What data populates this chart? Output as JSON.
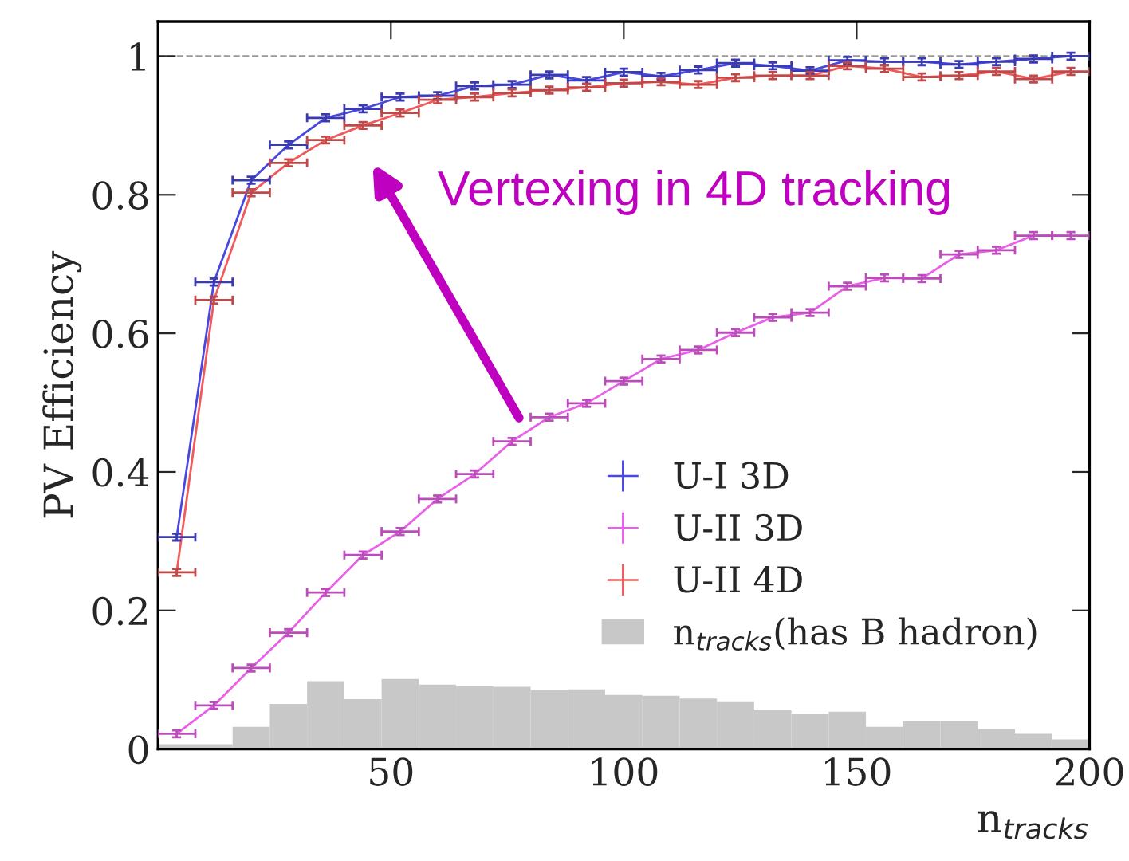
{
  "chart_data": {
    "type": "line",
    "xlabel": "n$_{tracks}$",
    "ylabel": "PV Efficiency",
    "xlim": [
      0,
      200
    ],
    "xticks": [
      50,
      100,
      150,
      200
    ],
    "ylim": [
      0,
      1.05
    ],
    "yticks": [
      0,
      0.2,
      0.4,
      0.6,
      0.8,
      1
    ],
    "x": [
      4,
      12,
      20,
      28,
      36,
      44,
      52,
      60,
      68,
      76,
      84,
      92,
      100,
      108,
      116,
      124,
      132,
      140,
      148,
      156,
      164,
      172,
      180,
      188,
      196
    ],
    "series": [
      {
        "name": "U-I 3D",
        "color": "#4848e0",
        "values": [
          0.306,
          0.674,
          0.821,
          0.872,
          0.911,
          0.924,
          0.941,
          0.943,
          0.957,
          0.959,
          0.973,
          0.965,
          0.977,
          0.971,
          0.98,
          0.99,
          0.986,
          0.979,
          0.994,
          0.992,
          0.992,
          0.988,
          0.992,
          0.996,
          1.0
        ],
        "xerrors": [
          4,
          4,
          4,
          4,
          4,
          4,
          4,
          4,
          4,
          4,
          4,
          4,
          4,
          4,
          4,
          4,
          4,
          4,
          4,
          4,
          4,
          4,
          4,
          4,
          4
        ],
        "errors": [
          0.005,
          0.005,
          0.005,
          0.005,
          0.005,
          0.005,
          0.005,
          0.005,
          0.005,
          0.005,
          0.005,
          0.005,
          0.005,
          0.005,
          0.005,
          0.005,
          0.005,
          0.005,
          0.005,
          0.005,
          0.005,
          0.005,
          0.005,
          0.005,
          0.005
        ]
      },
      {
        "name": "U-II 3D",
        "color": "#e860e8",
        "values": [
          0.022,
          0.063,
          0.117,
          0.168,
          0.226,
          0.28,
          0.314,
          0.361,
          0.397,
          0.444,
          0.479,
          0.499,
          0.531,
          0.563,
          0.576,
          0.601,
          0.623,
          0.63,
          0.668,
          0.68,
          0.679,
          0.714,
          0.72,
          0.741,
          0.741
        ],
        "xerrors": [
          4,
          4,
          4,
          4,
          4,
          4,
          4,
          4,
          4,
          4,
          4,
          4,
          4,
          4,
          4,
          4,
          4,
          4,
          4,
          4,
          4,
          4,
          4,
          4,
          4
        ],
        "errors": [
          0.005,
          0.005,
          0.005,
          0.005,
          0.005,
          0.005,
          0.005,
          0.005,
          0.005,
          0.005,
          0.005,
          0.005,
          0.005,
          0.005,
          0.005,
          0.005,
          0.005,
          0.005,
          0.005,
          0.005,
          0.005,
          0.005,
          0.005,
          0.005,
          0.005
        ]
      },
      {
        "name": "U-II 4D",
        "color": "#f05a5a",
        "values": [
          0.255,
          0.648,
          0.803,
          0.846,
          0.879,
          0.9,
          0.918,
          0.937,
          0.941,
          0.947,
          0.951,
          0.955,
          0.961,
          0.963,
          0.959,
          0.969,
          0.972,
          0.972,
          0.986,
          0.982,
          0.97,
          0.972,
          0.978,
          0.967,
          0.978
        ],
        "xerrors": [
          4,
          4,
          4,
          4,
          4,
          4,
          4,
          4,
          4,
          4,
          4,
          4,
          4,
          4,
          4,
          4,
          4,
          4,
          4,
          4,
          4,
          4,
          4,
          4,
          4
        ],
        "errors": [
          0.005,
          0.005,
          0.005,
          0.005,
          0.005,
          0.005,
          0.005,
          0.005,
          0.005,
          0.005,
          0.005,
          0.005,
          0.005,
          0.005,
          0.005,
          0.005,
          0.005,
          0.005,
          0.005,
          0.005,
          0.005,
          0.005,
          0.005,
          0.005,
          0.005
        ]
      },
      {
        "name": "n$_{tracks}$(has B hadron)",
        "type": "histogram",
        "color": "#c8c8c8",
        "bins": [
          0,
          8,
          16,
          24,
          32,
          40,
          48,
          56,
          64,
          72,
          80,
          88,
          96,
          104,
          112,
          120,
          128,
          136,
          144,
          152,
          160,
          168,
          176,
          184,
          192,
          200
        ],
        "values": [
          0.007,
          0.007,
          0.032,
          0.065,
          0.098,
          0.072,
          0.101,
          0.093,
          0.091,
          0.09,
          0.085,
          0.086,
          0.078,
          0.077,
          0.073,
          0.069,
          0.056,
          0.051,
          0.054,
          0.032,
          0.04,
          0.04,
          0.029,
          0.022,
          0.014
        ]
      }
    ],
    "ref_lines": [
      {
        "axis": "y",
        "value": 1,
        "color": "#999999",
        "line_style": "dashed"
      }
    ],
    "annotations": [
      "Vertexing in 4D tracking"
    ],
    "legend": "bottom right",
    "marker": "none",
    "line_style": "solid",
    "grid": false
  }
}
